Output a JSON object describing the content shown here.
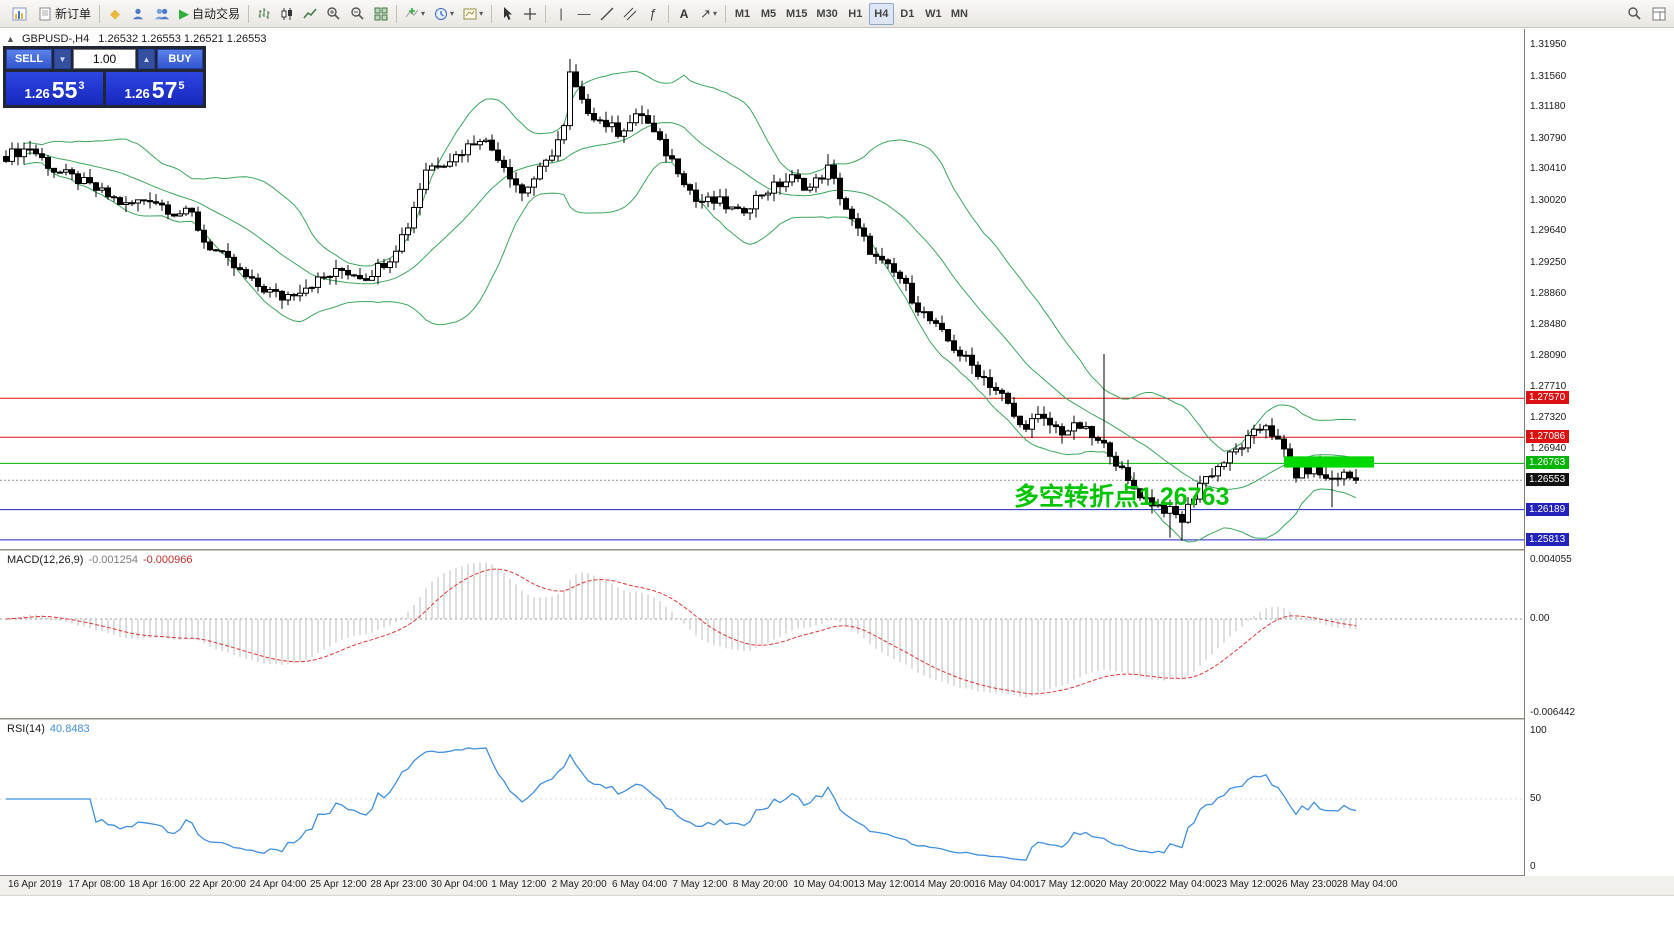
{
  "toolbar": {
    "new_order_label": "新订单",
    "auto_trading_label": "自动交易",
    "text_tool_label": "A",
    "timeframes": [
      "M1",
      "M5",
      "M15",
      "M30",
      "H1",
      "H4",
      "D1",
      "W1",
      "MN"
    ],
    "active_timeframe": "H4"
  },
  "trade_panel": {
    "sell_label": "SELL",
    "buy_label": "BUY",
    "volume": "1.00",
    "sell_price_prefix": "1.26",
    "sell_price_main": "55",
    "sell_price_sup": "3",
    "buy_price_prefix": "1.26",
    "buy_price_main": "57",
    "buy_price_sup": "5"
  },
  "chart_header": {
    "symbol": "GBPUSD-,H4",
    "ohlc": "1.26532 1.26553 1.26521 1.26553"
  },
  "annotation": {
    "text": "多空转折点1.26763",
    "color": "#00c400"
  },
  "levels": [
    {
      "price": 1.2757,
      "label": "1.27570",
      "color": "#dd1111"
    },
    {
      "price": 1.27086,
      "label": "1.27086",
      "color": "#dd1111"
    },
    {
      "price": 1.26763,
      "label": "1.26763",
      "color": "#00b400"
    },
    {
      "price": 1.26553,
      "label": "1.26553",
      "color": "#111111",
      "style": "current"
    },
    {
      "price": 1.26189,
      "label": "1.26189",
      "color": "#2323bb"
    },
    {
      "price": 1.25813,
      "label": "1.25813",
      "color": "#2323bb"
    }
  ],
  "price_axis_labels": [
    "1.31950",
    "1.31560",
    "1.31180",
    "1.30790",
    "1.30410",
    "1.30020",
    "1.29640",
    "1.29250",
    "1.28860",
    "1.28480",
    "1.28090",
    "1.27710",
    "1.27320",
    "1.26940"
  ],
  "highlight": {
    "from_bar": 213,
    "to_bar": 228,
    "price_top": 1.2685,
    "price_bottom": 1.2671
  },
  "colors": {
    "bollinger": "#3aa65c",
    "candle_up_fill": "#ffffff",
    "candle_down_fill": "#000000",
    "macd_hist": "#bcbcbc",
    "macd_signal": "#e03535",
    "rsi_line": "#3f8fdf",
    "highlight_green": "#00d800"
  },
  "chart_data": {
    "type": "candlestick",
    "symbol": "GBPUSD",
    "timeframe": "H4",
    "bars": 226,
    "last_close": 1.26553,
    "price_scale": {
      "top": 1.3214,
      "bottom": 1.257
    },
    "close_anchors": [
      [
        0,
        1.3058
      ],
      [
        4,
        1.3068
      ],
      [
        8,
        1.304
      ],
      [
        12,
        1.3028
      ],
      [
        16,
        1.3012
      ],
      [
        20,
        1.2996
      ],
      [
        24,
        1.3006
      ],
      [
        28,
        1.2988
      ],
      [
        31,
        1.2985
      ],
      [
        33,
        1.2952
      ],
      [
        37,
        1.2926
      ],
      [
        41,
        1.29
      ],
      [
        46,
        1.2882
      ],
      [
        51,
        1.29
      ],
      [
        56,
        1.2916
      ],
      [
        60,
        1.2908
      ],
      [
        64,
        1.2932
      ],
      [
        67,
        1.2972
      ],
      [
        70,
        1.3042
      ],
      [
        75,
        1.3058
      ],
      [
        79,
        1.3082
      ],
      [
        82,
        1.3058
      ],
      [
        86,
        1.3012
      ],
      [
        90,
        1.3048
      ],
      [
        93,
        1.3092
      ],
      [
        94,
        1.3158
      ],
      [
        96,
        1.3122
      ],
      [
        99,
        1.3102
      ],
      [
        102,
        1.3088
      ],
      [
        106,
        1.311
      ],
      [
        109,
        1.3072
      ],
      [
        112,
        1.3042
      ],
      [
        115,
        1.3002
      ],
      [
        119,
        1.3
      ],
      [
        122,
        1.2986
      ],
      [
        126,
        1.3012
      ],
      [
        131,
        1.303
      ],
      [
        134,
        1.3018
      ],
      [
        137,
        1.3042
      ],
      [
        141,
        1.2976
      ],
      [
        145,
        1.293
      ],
      [
        149,
        1.2906
      ],
      [
        152,
        1.287
      ],
      [
        156,
        1.2836
      ],
      [
        159,
        1.2812
      ],
      [
        162,
        1.279
      ],
      [
        166,
        1.276
      ],
      [
        169,
        1.2722
      ],
      [
        172,
        1.2732
      ],
      [
        176,
        1.2716
      ],
      [
        179,
        1.2722
      ],
      [
        182,
        1.2702
      ],
      [
        184,
        1.2692
      ],
      [
        187,
        1.2652
      ],
      [
        190,
        1.2632
      ],
      [
        194,
        1.2616
      ],
      [
        196,
        1.2606
      ],
      [
        199,
        1.2652
      ],
      [
        202,
        1.2672
      ],
      [
        205,
        1.2692
      ],
      [
        208,
        1.2712
      ],
      [
        210,
        1.2726
      ],
      [
        213,
        1.269
      ],
      [
        215,
        1.2662
      ],
      [
        218,
        1.2672
      ],
      [
        220,
        1.2656
      ],
      [
        223,
        1.2662
      ],
      [
        225,
        1.26553
      ]
    ],
    "wick_overrides": [
      {
        "i": 94,
        "high": 1.3178
      },
      {
        "i": 137,
        "high": 1.306
      },
      {
        "i": 183,
        "high": 1.2812
      },
      {
        "i": 194,
        "low": 1.2584
      },
      {
        "i": 196,
        "low": 1.258
      },
      {
        "i": 221,
        "low": 1.2622
      }
    ],
    "indicators": {
      "bollinger": {
        "period": 20,
        "deviation": 2
      },
      "macd": {
        "label": "MACD(12,26,9)",
        "value_main": "-0.001254",
        "value_signal": "-0.000966",
        "axis": [
          0.004055,
          0,
          -0.006442
        ],
        "axis_labels": [
          "0.004055",
          "0.00",
          "-0.006442"
        ]
      },
      "rsi": {
        "label": "RSI(14)",
        "value": "40.8483",
        "axis": [
          100,
          50,
          0
        ],
        "axis_labels": [
          "100",
          "50",
          "0"
        ]
      }
    },
    "time_labels": [
      "16 Apr 2019",
      "17 Apr 08:00",
      "18 Apr 16:00",
      "22 Apr 20:00",
      "24 Apr 04:00",
      "25 Apr 12:00",
      "28 Apr 23:00",
      "30 Apr 04:00",
      "1 May 12:00",
      "2 May 20:00",
      "6 May 04:00",
      "7 May 12:00",
      "8 May 20:00",
      "10 May 04:00",
      "13 May 12:00",
      "14 May 20:00",
      "16 May 04:00",
      "17 May 12:00",
      "20 May 20:00",
      "22 May 04:00",
      "23 May 12:00",
      "26 May 23:00",
      "28 May 04:00"
    ]
  }
}
